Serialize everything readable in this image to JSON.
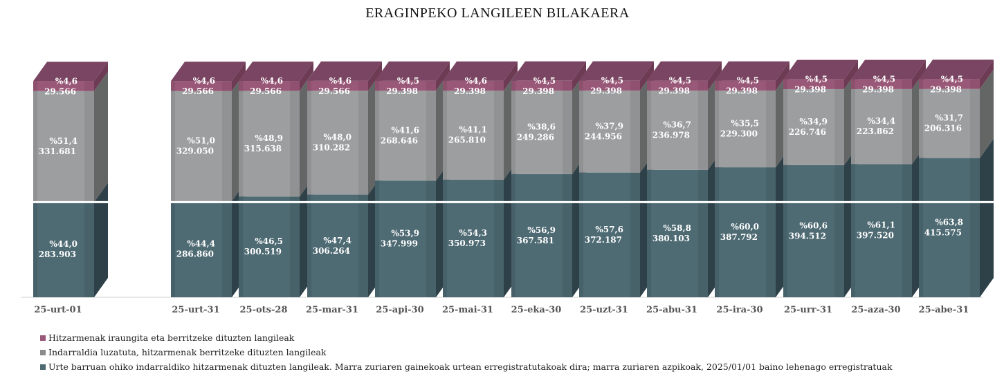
{
  "chart_data": {
    "type": "bar",
    "stacked": true,
    "three_d": true,
    "title": "ERAGINPEKO LANGILEEN BILAKAERA",
    "xlabel": "",
    "ylabel": "",
    "legend_position": "bottom-left",
    "categories": [
      "25-urt-01",
      "25-urt-31",
      "25-ots-28",
      "25-mar-31",
      "25-api-30",
      "25-mai-31",
      "25-eka-30",
      "25-uzt-31",
      "25-abu-31",
      "25-ira-30",
      "25-urr-31",
      "25-aza-30",
      "25-abe-31"
    ],
    "series": [
      {
        "name": "Urte barruan ohiko indarraldiko hitzarmenak dituzten langileak. Marra zuriaren gainekoak urtean erregistratutakoak dira; marra zuriaren azpikoak, 2025/01/01 baino lehenago erregistratuak",
        "color": "#4e6a73",
        "values": [
          283903,
          286860,
          300519,
          306264,
          347999,
          350973,
          367581,
          372187,
          380103,
          387792,
          394512,
          397520,
          415575
        ],
        "value_labels": [
          "283.903",
          "286.860",
          "300.519",
          "306.264",
          "347.999",
          "350.973",
          "367.581",
          "372.187",
          "380.103",
          "387.792",
          "394.512",
          "397.520",
          "415.575"
        ],
        "pct_labels": [
          "%44,0",
          "%44,4",
          "%46,5",
          "%47,4",
          "%53,9",
          "%54,3",
          "%56,9",
          "%57,6",
          "%58,8",
          "%60,0",
          "%60,6",
          "%61,1",
          "%63,8"
        ]
      },
      {
        "name": "Indarraldia luzatuta, hitzarmenak berritzeke dituzten langileak",
        "color": "#9d9ea0",
        "values": [
          331681,
          329050,
          315638,
          310282,
          268646,
          265810,
          249286,
          244956,
          236978,
          229300,
          226746,
          223862,
          206316
        ],
        "value_labels": [
          "331.681",
          "329.050",
          "315.638",
          "310.282",
          "268.646",
          "265.810",
          "249.286",
          "244.956",
          "236.978",
          "229.300",
          "226.746",
          "223.862",
          "206.316"
        ],
        "pct_labels": [
          "%51,4",
          "%51,0",
          "%48,9",
          "%48,0",
          "%41,6",
          "%41,1",
          "%38,6",
          "%37,9",
          "%36,7",
          "%35,5",
          "%34,9",
          "%34,4",
          "%31,7"
        ]
      },
      {
        "name": "Hitzarmenak iraungita eta berritzeke dituzten langileak",
        "color": "#9a5878",
        "values": [
          29566,
          29566,
          29566,
          29566,
          29398,
          29398,
          29398,
          29398,
          29398,
          29398,
          29398,
          29398,
          29398
        ],
        "value_labels": [
          "29.566",
          "29.566",
          "29.566",
          "29.566",
          "29.398",
          "29.398",
          "29.398",
          "29.398",
          "29.398",
          "29.398",
          "29.398",
          "29.398",
          "29.398"
        ],
        "pct_labels": [
          "%4,6",
          "%4,6",
          "%4,6",
          "%4,6",
          "%4,5",
          "%4,6",
          "%4,5",
          "%4,5",
          "%4,5",
          "%4,5",
          "%4,5",
          "%4,5",
          "%4,5"
        ]
      }
    ],
    "reference_line_value": 283903,
    "ylim": [
      0,
      650000
    ],
    "grid": false
  }
}
